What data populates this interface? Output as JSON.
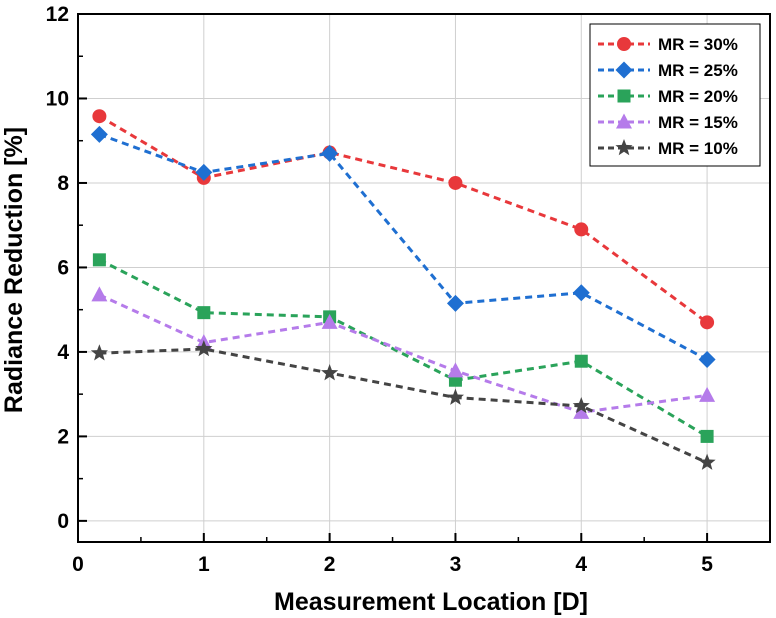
{
  "chart_data": {
    "type": "line",
    "xlabel": "Measurement Location [D]",
    "ylabel": "Radiance Reduction [%]",
    "xlim": [
      0,
      5.5
    ],
    "ylim": [
      -0.5,
      12
    ],
    "xticks": [
      0,
      1,
      2,
      3,
      4,
      5
    ],
    "yticks": [
      0,
      2,
      4,
      6,
      8,
      10,
      12
    ],
    "grid": true,
    "legend_position": "top-right",
    "x": [
      0.17,
      1,
      2,
      3,
      4,
      5
    ],
    "series": [
      {
        "name": "MR = 30%",
        "color": "#e8383b",
        "marker": "circle",
        "values": [
          9.58,
          8.12,
          8.72,
          8.0,
          6.9,
          4.7
        ]
      },
      {
        "name": "MR = 25%",
        "color": "#1f6fd1",
        "marker": "diamond",
        "values": [
          9.15,
          8.25,
          8.7,
          5.15,
          5.4,
          3.82
        ]
      },
      {
        "name": "MR = 20%",
        "color": "#2aa35a",
        "marker": "square",
        "values": [
          6.18,
          4.93,
          4.83,
          3.33,
          3.78,
          2.0
        ]
      },
      {
        "name": "MR = 15%",
        "color": "#b57bea",
        "marker": "triangle",
        "values": [
          5.35,
          4.22,
          4.7,
          3.55,
          2.57,
          2.97
        ]
      },
      {
        "name": "MR = 10%",
        "color": "#444444",
        "marker": "star",
        "values": [
          3.97,
          4.07,
          3.5,
          2.92,
          2.72,
          1.38
        ]
      }
    ]
  }
}
